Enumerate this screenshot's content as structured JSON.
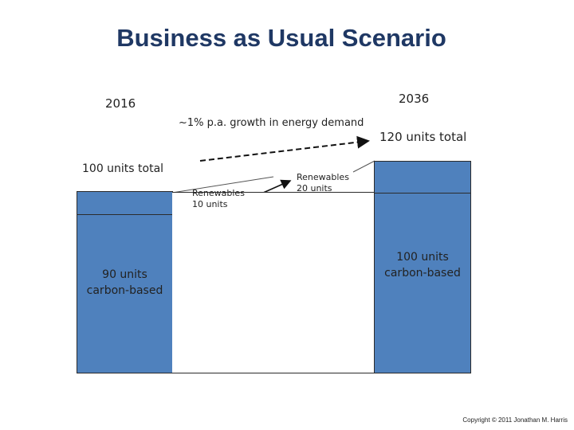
{
  "title": "Business as Usual Scenario",
  "years": {
    "start": "2016",
    "end": "2036"
  },
  "growth_label": "~1% p.a. growth in energy demand",
  "left": {
    "total_label": "100 units total",
    "carbon_line1": "90 units",
    "carbon_line2": "carbon-based"
  },
  "renewables_2016": {
    "line1": "Renewables",
    "line2": "10 units"
  },
  "renewables_2036": {
    "line1": "Renewables",
    "line2": "20 units"
  },
  "right": {
    "total_label": "120 units total",
    "carbon_line1": "100 units",
    "carbon_line2": "carbon-based"
  },
  "copyright": "Copyright © 2011 Jonathan M. Harris",
  "colors": {
    "title": "#1f3864",
    "bar": "#4f81bd",
    "border": "#2b2b2b"
  }
}
